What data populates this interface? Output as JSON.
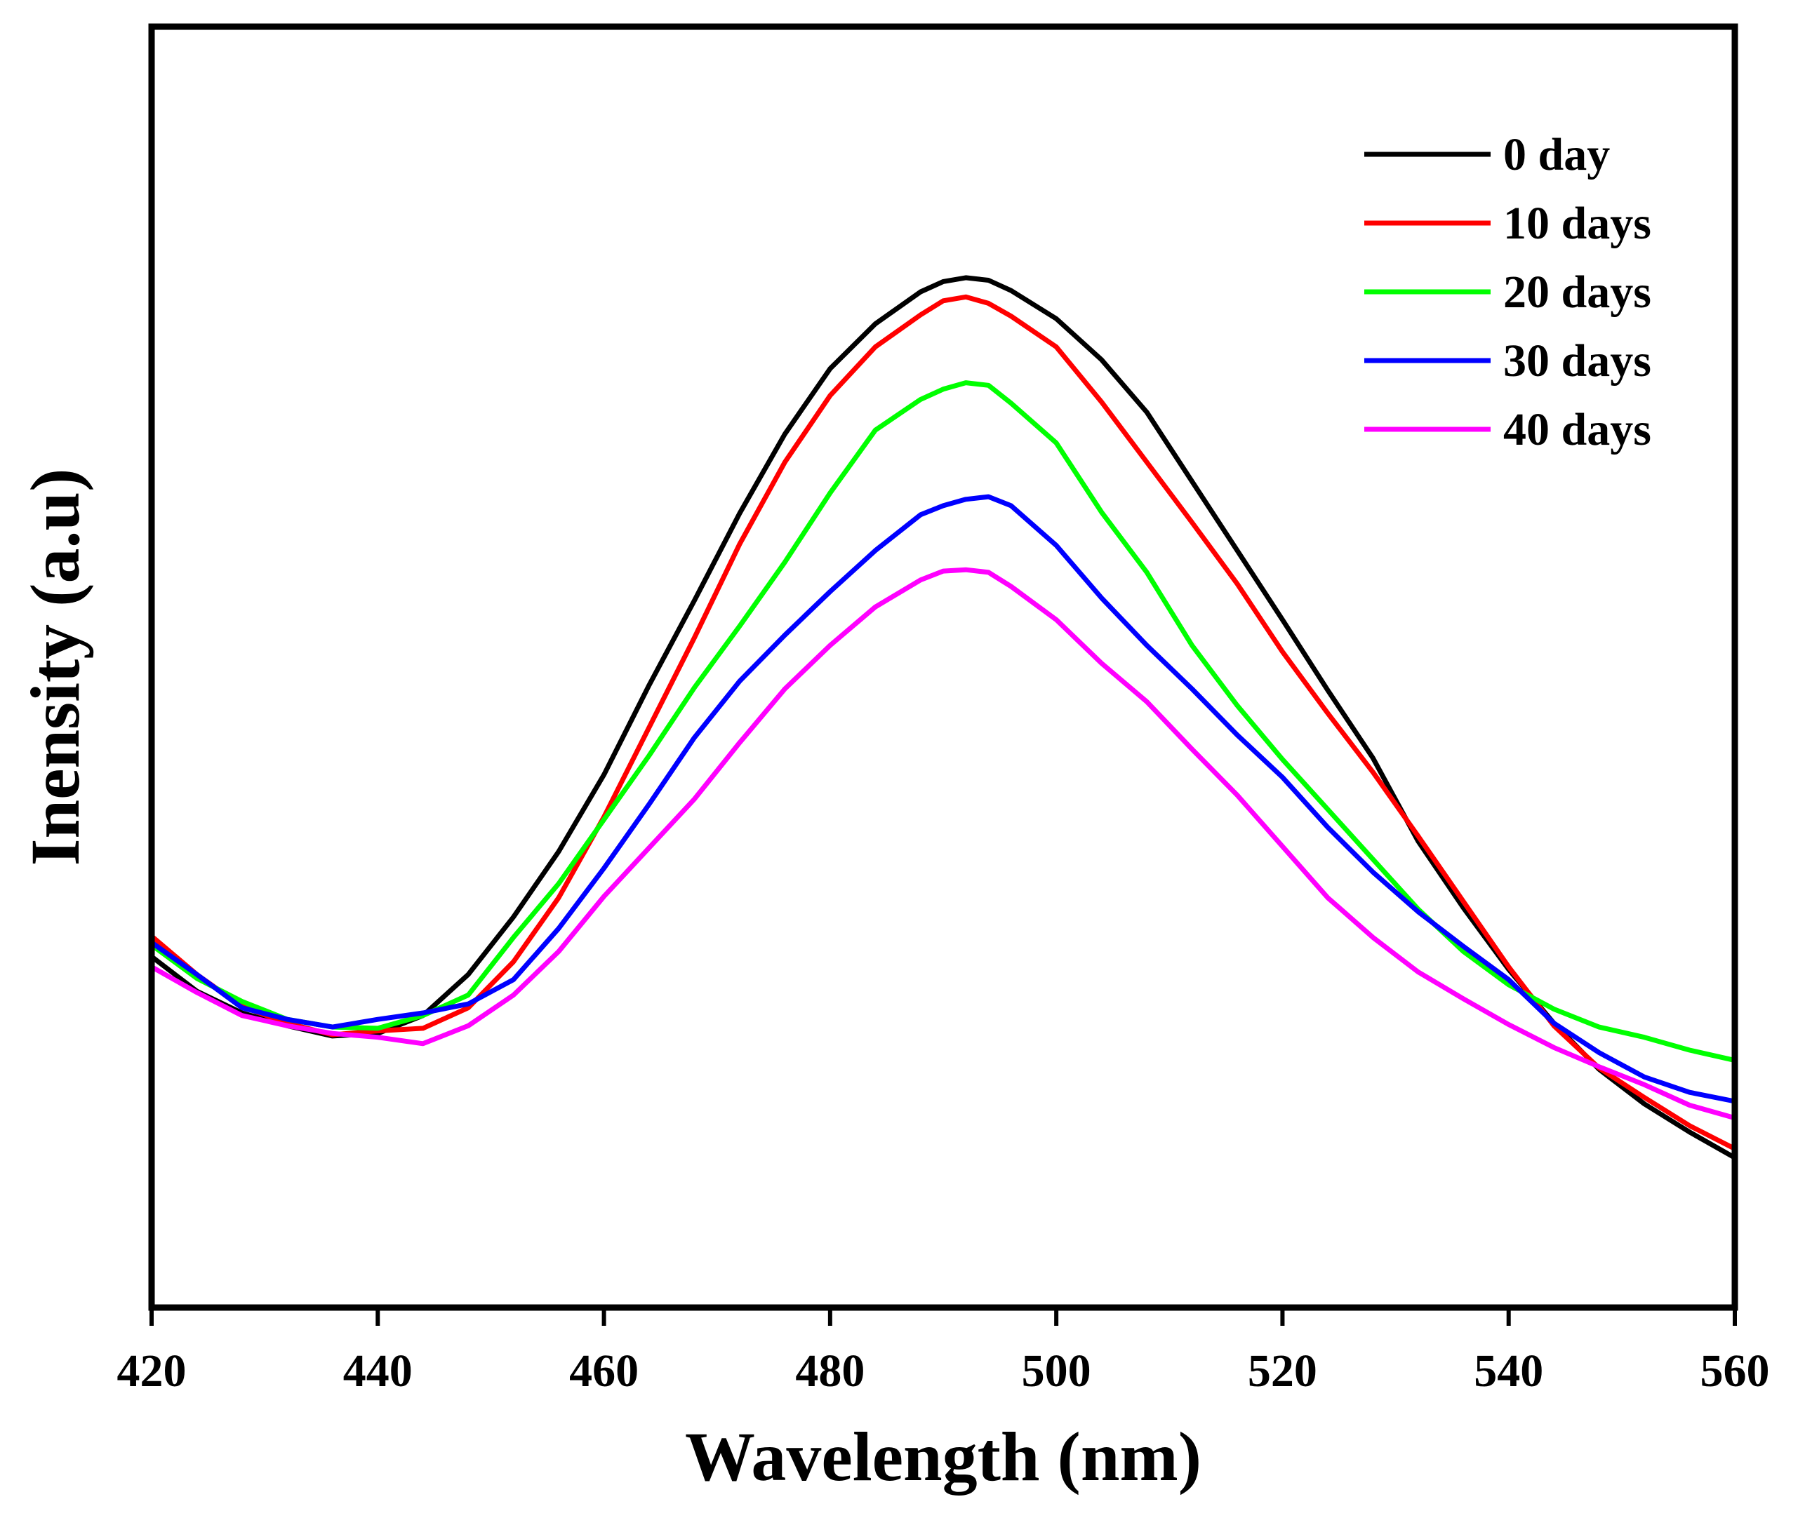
{
  "chart_data": {
    "type": "line",
    "title": "",
    "xlabel": "Wavelength (nm)",
    "ylabel": "Inensity (a.u)",
    "xlim": [
      420,
      560
    ],
    "ylim": [
      0,
      1000
    ],
    "x_ticks": [
      420,
      440,
      460,
      480,
      500,
      520,
      540,
      560
    ],
    "x_tick_labels": [
      "420",
      "440",
      "460",
      "480",
      "500",
      "520",
      "540",
      "560"
    ],
    "y_ticks_shown": false,
    "grid": false,
    "legend_position": "top-right",
    "x": [
      420,
      424,
      428,
      432,
      436,
      440,
      444,
      448,
      452,
      456,
      460,
      464,
      468,
      472,
      476,
      480,
      484,
      488,
      490,
      492,
      494,
      496,
      500,
      504,
      508,
      512,
      516,
      520,
      524,
      528,
      532,
      536,
      540,
      544,
      548,
      552,
      556,
      560
    ],
    "series": [
      {
        "name": "0 day",
        "color": "#000000",
        "values": [
          274,
          247,
          230,
          220,
          212,
          214,
          228,
          260,
          305,
          356,
          416,
          486,
          552,
          620,
          682,
          733,
          768,
          793,
          801,
          804,
          802,
          794,
          772,
          740,
          699,
          645,
          591,
          537,
          482,
          429,
          364,
          312,
          264,
          222,
          186,
          159,
          137,
          117
        ]
      },
      {
        "name": "10 days",
        "color": "#ff0000",
        "values": [
          290,
          260,
          235,
          222,
          213,
          216,
          218,
          234,
          270,
          320,
          383,
          453,
          523,
          596,
          660,
          712,
          750,
          775,
          786,
          789,
          784,
          774,
          750,
          707,
          660,
          613,
          565,
          512,
          464,
          418,
          368,
          317,
          266,
          220,
          187,
          164,
          142,
          124
        ]
      },
      {
        "name": "20 days",
        "color": "#00ff00",
        "values": [
          283,
          257,
          239,
          225,
          219,
          218,
          228,
          244,
          289,
          331,
          381,
          431,
          484,
          532,
          582,
          636,
          685,
          709,
          717,
          722,
          720,
          706,
          675,
          621,
          574,
          517,
          470,
          428,
          389,
          350,
          311,
          278,
          252,
          233,
          219,
          211,
          201,
          193
        ]
      },
      {
        "name": "30 days",
        "color": "#0000ff",
        "values": [
          285,
          260,
          234,
          225,
          219,
          225,
          230,
          237,
          256,
          296,
          343,
          393,
          445,
          489,
          525,
          559,
          591,
          619,
          626,
          631,
          633,
          626,
          595,
          554,
          517,
          483,
          447,
          414,
          375,
          340,
          309,
          282,
          256,
          222,
          199,
          180,
          168,
          161
        ]
      },
      {
        "name": "40 days",
        "color": "#ff00ff",
        "values": [
          266,
          246,
          228,
          220,
          214,
          211,
          206,
          220,
          244,
          278,
          321,
          359,
          397,
          441,
          483,
          517,
          547,
          568,
          575,
          576,
          574,
          563,
          537,
          503,
          473,
          436,
          400,
          360,
          320,
          289,
          262,
          241,
          221,
          203,
          188,
          174,
          158,
          148
        ]
      }
    ]
  }
}
